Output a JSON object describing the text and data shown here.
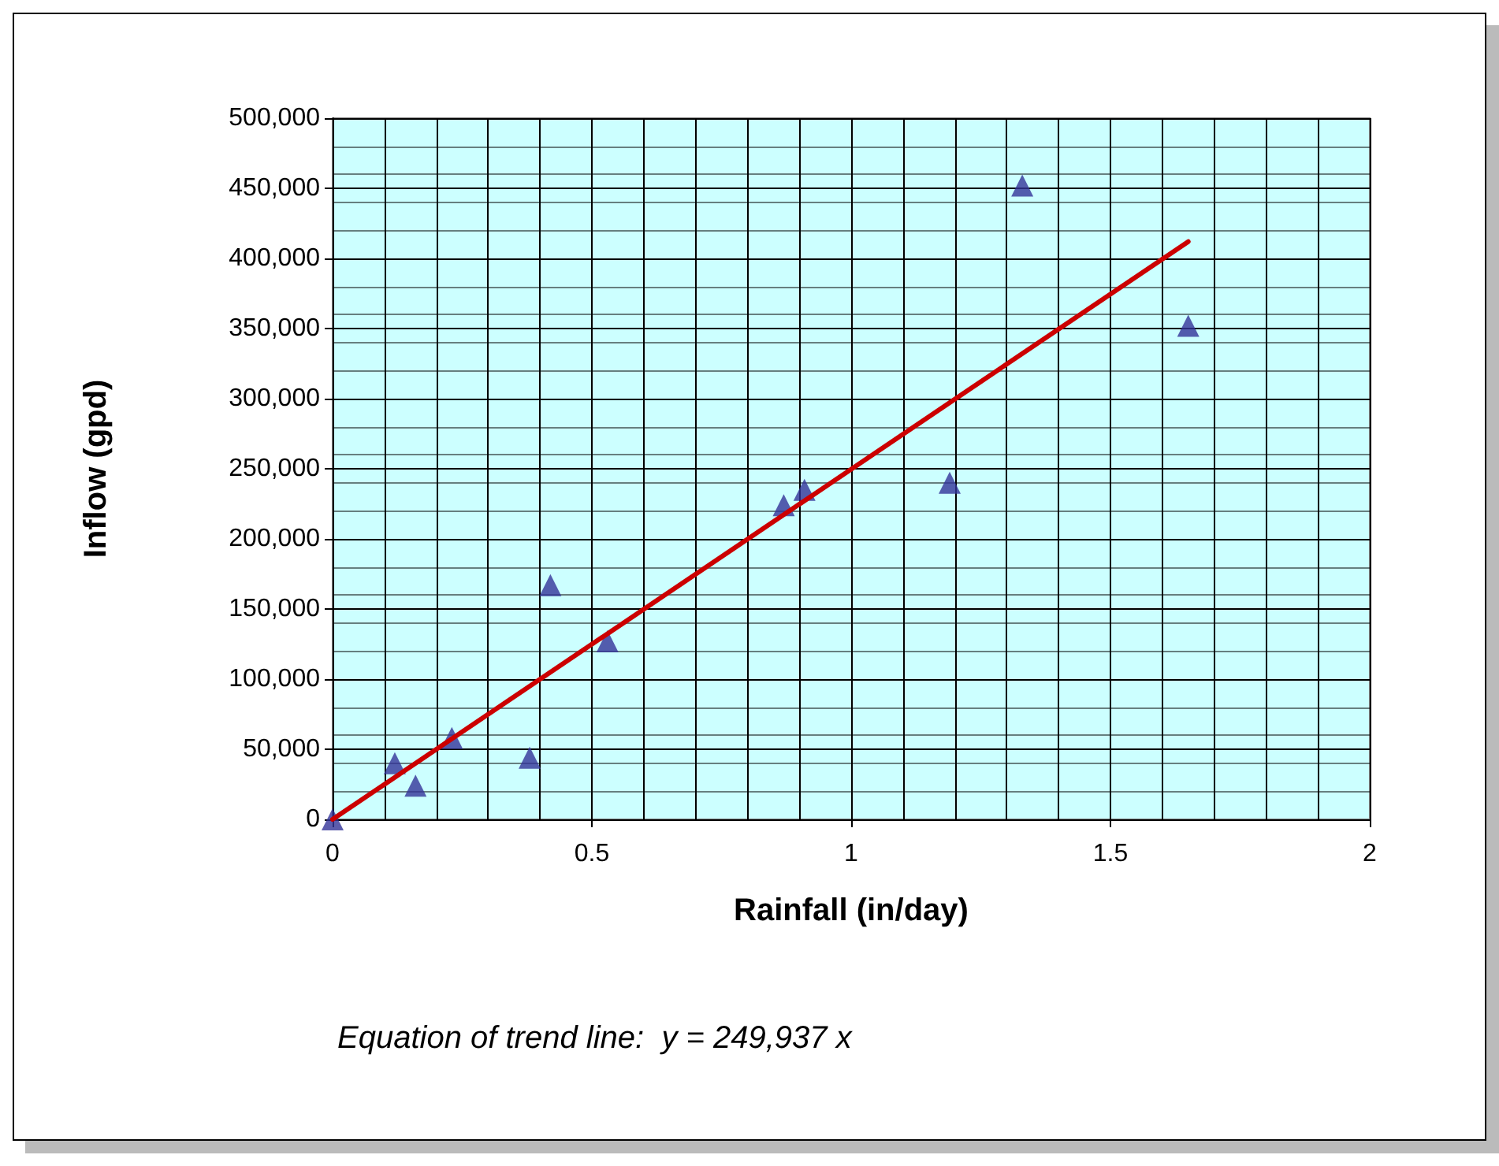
{
  "chart_data": {
    "type": "scatter",
    "xlabel": "Rainfall (in/day)",
    "ylabel": "Inflow (gpd)",
    "annotations": [
      "Equation of trend line:  y = 249,937 x"
    ],
    "xlim": [
      0,
      2
    ],
    "xticks": [
      0,
      0.5,
      1,
      1.5,
      2
    ],
    "ylim": [
      0,
      500000
    ],
    "yticks": [
      0,
      {
        "value": 50000,
        "label": "50,000"
      },
      {
        "value": 100000,
        "label": "100,000"
      },
      {
        "value": 150000,
        "label": "150,000"
      },
      {
        "value": 200000,
        "label": "200,000"
      },
      {
        "value": 250000,
        "label": "250,000"
      },
      {
        "value": 300000,
        "label": "300,000"
      },
      {
        "value": 350000,
        "label": "350,000"
      },
      {
        "value": 400000,
        "label": "400,000"
      },
      {
        "value": 450000,
        "label": "450,000"
      },
      {
        "value": 500000,
        "label": "500,000"
      }
    ],
    "grid": true,
    "series": [
      {
        "type": "scatter",
        "color": "#333399",
        "marker": "triangle",
        "x": [
          0,
          0.12,
          0.16,
          0.23,
          0.38,
          0.42,
          0.53,
          0.87,
          0.91,
          1.19,
          1.33,
          1.65
        ],
        "values": [
          0,
          40000,
          24000,
          58000,
          44000,
          167000,
          127000,
          224000,
          235000,
          240000,
          452000,
          352000
        ]
      },
      {
        "type": "line",
        "color": "#cc0000",
        "marker": "none",
        "line_style": "solid",
        "x": [
          0,
          1.65
        ],
        "values": [
          0,
          412000
        ]
      }
    ]
  }
}
